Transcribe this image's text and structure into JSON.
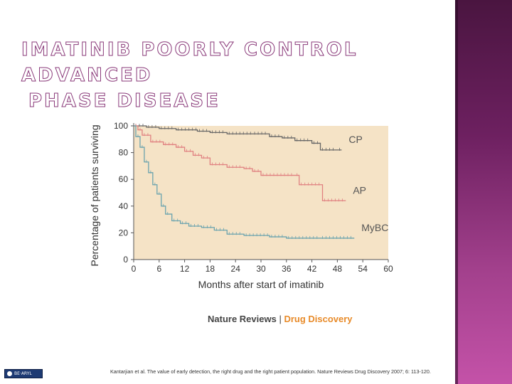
{
  "slide": {
    "title_line1": "IMATINIB POORLY CONTROL ADVANCED",
    "title_line2": "PHASE DISEASE",
    "citation": "Kantarjian et al. The value of early detection, the right drug and the right patient population. Nature Reviews Drug Discovery 2007; 6: 113-120.",
    "badge_label": "BE·ARYL",
    "accent_color": "#8a3a7a"
  },
  "chart_data": {
    "type": "line",
    "xlabel": "Months after start of imatinib",
    "ylabel": "Percentage of patients surviving",
    "xlim": [
      0,
      60
    ],
    "ylim": [
      0,
      100
    ],
    "xticks": [
      0,
      6,
      12,
      18,
      24,
      30,
      36,
      42,
      48,
      54,
      60
    ],
    "yticks": [
      0,
      20,
      40,
      60,
      80,
      100
    ],
    "grid": false,
    "background_color": "#f5e3c6",
    "source_left": "Nature Reviews",
    "source_sep": "|",
    "source_right": "Drug Discovery",
    "source_right_color": "#e88b2a",
    "series": [
      {
        "name": "CP",
        "color": "#666666",
        "points": [
          [
            0,
            100
          ],
          [
            3,
            99
          ],
          [
            6,
            98
          ],
          [
            10,
            97
          ],
          [
            15,
            96
          ],
          [
            18,
            95
          ],
          [
            22,
            94
          ],
          [
            28,
            94
          ],
          [
            32,
            92
          ],
          [
            35,
            91
          ],
          [
            38,
            89
          ],
          [
            42,
            87
          ],
          [
            44,
            82
          ],
          [
            48,
            82
          ],
          [
            49,
            82
          ]
        ]
      },
      {
        "name": "AP",
        "color": "#e08080",
        "points": [
          [
            0,
            100
          ],
          [
            1,
            97
          ],
          [
            2,
            93
          ],
          [
            4,
            88
          ],
          [
            7,
            86
          ],
          [
            10,
            84
          ],
          [
            12,
            81
          ],
          [
            14,
            78
          ],
          [
            16,
            76
          ],
          [
            18,
            71
          ],
          [
            22,
            69
          ],
          [
            26,
            68
          ],
          [
            28,
            66
          ],
          [
            30,
            63
          ],
          [
            38,
            63
          ],
          [
            39,
            56
          ],
          [
            44,
            56
          ],
          [
            44.5,
            44
          ],
          [
            50,
            44
          ]
        ]
      },
      {
        "name": "MyBC",
        "color": "#6aa3ae",
        "points": [
          [
            0,
            100
          ],
          [
            0.5,
            92
          ],
          [
            1.5,
            84
          ],
          [
            2.5,
            73
          ],
          [
            3.5,
            65
          ],
          [
            4.5,
            56
          ],
          [
            5.5,
            49
          ],
          [
            6.5,
            40
          ],
          [
            7.5,
            34
          ],
          [
            9,
            29
          ],
          [
            11,
            27
          ],
          [
            13,
            25
          ],
          [
            16,
            24
          ],
          [
            19,
            22
          ],
          [
            22,
            19
          ],
          [
            26,
            18
          ],
          [
            32,
            17
          ],
          [
            36,
            16
          ],
          [
            44,
            16
          ],
          [
            52,
            16
          ]
        ]
      }
    ]
  }
}
